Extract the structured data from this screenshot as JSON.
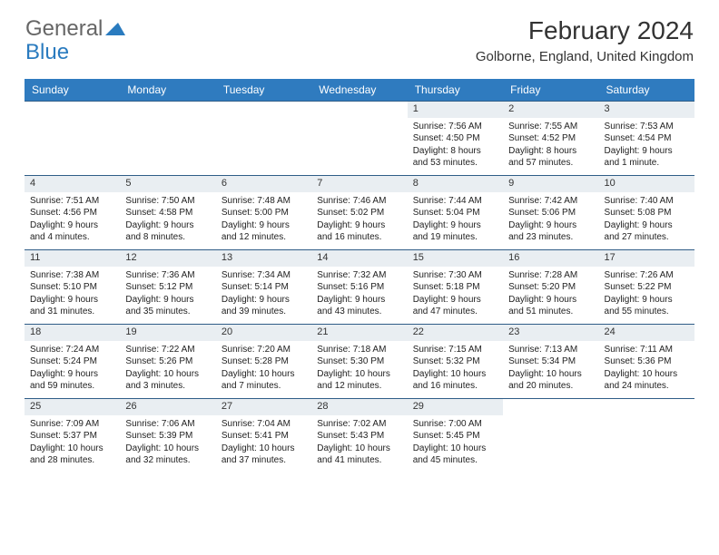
{
  "logo": {
    "text1": "General",
    "text2": "Blue"
  },
  "title": "February 2024",
  "location": "Golborne, England, United Kingdom",
  "dow": [
    "Sunday",
    "Monday",
    "Tuesday",
    "Wednesday",
    "Thursday",
    "Friday",
    "Saturday"
  ],
  "colors": {
    "header_bg": "#2f7bbf",
    "header_text": "#ffffff",
    "daynum_bg": "#e9eef2",
    "border": "#2f5d87",
    "text": "#222222",
    "logo_gray": "#666666",
    "logo_blue": "#2a7bbf"
  },
  "weeks": [
    [
      null,
      null,
      null,
      null,
      {
        "n": "1",
        "sr": "Sunrise: 7:56 AM",
        "ss": "Sunset: 4:50 PM",
        "d1": "Daylight: 8 hours",
        "d2": "and 53 minutes."
      },
      {
        "n": "2",
        "sr": "Sunrise: 7:55 AM",
        "ss": "Sunset: 4:52 PM",
        "d1": "Daylight: 8 hours",
        "d2": "and 57 minutes."
      },
      {
        "n": "3",
        "sr": "Sunrise: 7:53 AM",
        "ss": "Sunset: 4:54 PM",
        "d1": "Daylight: 9 hours",
        "d2": "and 1 minute."
      }
    ],
    [
      {
        "n": "4",
        "sr": "Sunrise: 7:51 AM",
        "ss": "Sunset: 4:56 PM",
        "d1": "Daylight: 9 hours",
        "d2": "and 4 minutes."
      },
      {
        "n": "5",
        "sr": "Sunrise: 7:50 AM",
        "ss": "Sunset: 4:58 PM",
        "d1": "Daylight: 9 hours",
        "d2": "and 8 minutes."
      },
      {
        "n": "6",
        "sr": "Sunrise: 7:48 AM",
        "ss": "Sunset: 5:00 PM",
        "d1": "Daylight: 9 hours",
        "d2": "and 12 minutes."
      },
      {
        "n": "7",
        "sr": "Sunrise: 7:46 AM",
        "ss": "Sunset: 5:02 PM",
        "d1": "Daylight: 9 hours",
        "d2": "and 16 minutes."
      },
      {
        "n": "8",
        "sr": "Sunrise: 7:44 AM",
        "ss": "Sunset: 5:04 PM",
        "d1": "Daylight: 9 hours",
        "d2": "and 19 minutes."
      },
      {
        "n": "9",
        "sr": "Sunrise: 7:42 AM",
        "ss": "Sunset: 5:06 PM",
        "d1": "Daylight: 9 hours",
        "d2": "and 23 minutes."
      },
      {
        "n": "10",
        "sr": "Sunrise: 7:40 AM",
        "ss": "Sunset: 5:08 PM",
        "d1": "Daylight: 9 hours",
        "d2": "and 27 minutes."
      }
    ],
    [
      {
        "n": "11",
        "sr": "Sunrise: 7:38 AM",
        "ss": "Sunset: 5:10 PM",
        "d1": "Daylight: 9 hours",
        "d2": "and 31 minutes."
      },
      {
        "n": "12",
        "sr": "Sunrise: 7:36 AM",
        "ss": "Sunset: 5:12 PM",
        "d1": "Daylight: 9 hours",
        "d2": "and 35 minutes."
      },
      {
        "n": "13",
        "sr": "Sunrise: 7:34 AM",
        "ss": "Sunset: 5:14 PM",
        "d1": "Daylight: 9 hours",
        "d2": "and 39 minutes."
      },
      {
        "n": "14",
        "sr": "Sunrise: 7:32 AM",
        "ss": "Sunset: 5:16 PM",
        "d1": "Daylight: 9 hours",
        "d2": "and 43 minutes."
      },
      {
        "n": "15",
        "sr": "Sunrise: 7:30 AM",
        "ss": "Sunset: 5:18 PM",
        "d1": "Daylight: 9 hours",
        "d2": "and 47 minutes."
      },
      {
        "n": "16",
        "sr": "Sunrise: 7:28 AM",
        "ss": "Sunset: 5:20 PM",
        "d1": "Daylight: 9 hours",
        "d2": "and 51 minutes."
      },
      {
        "n": "17",
        "sr": "Sunrise: 7:26 AM",
        "ss": "Sunset: 5:22 PM",
        "d1": "Daylight: 9 hours",
        "d2": "and 55 minutes."
      }
    ],
    [
      {
        "n": "18",
        "sr": "Sunrise: 7:24 AM",
        "ss": "Sunset: 5:24 PM",
        "d1": "Daylight: 9 hours",
        "d2": "and 59 minutes."
      },
      {
        "n": "19",
        "sr": "Sunrise: 7:22 AM",
        "ss": "Sunset: 5:26 PM",
        "d1": "Daylight: 10 hours",
        "d2": "and 3 minutes."
      },
      {
        "n": "20",
        "sr": "Sunrise: 7:20 AM",
        "ss": "Sunset: 5:28 PM",
        "d1": "Daylight: 10 hours",
        "d2": "and 7 minutes."
      },
      {
        "n": "21",
        "sr": "Sunrise: 7:18 AM",
        "ss": "Sunset: 5:30 PM",
        "d1": "Daylight: 10 hours",
        "d2": "and 12 minutes."
      },
      {
        "n": "22",
        "sr": "Sunrise: 7:15 AM",
        "ss": "Sunset: 5:32 PM",
        "d1": "Daylight: 10 hours",
        "d2": "and 16 minutes."
      },
      {
        "n": "23",
        "sr": "Sunrise: 7:13 AM",
        "ss": "Sunset: 5:34 PM",
        "d1": "Daylight: 10 hours",
        "d2": "and 20 minutes."
      },
      {
        "n": "24",
        "sr": "Sunrise: 7:11 AM",
        "ss": "Sunset: 5:36 PM",
        "d1": "Daylight: 10 hours",
        "d2": "and 24 minutes."
      }
    ],
    [
      {
        "n": "25",
        "sr": "Sunrise: 7:09 AM",
        "ss": "Sunset: 5:37 PM",
        "d1": "Daylight: 10 hours",
        "d2": "and 28 minutes."
      },
      {
        "n": "26",
        "sr": "Sunrise: 7:06 AM",
        "ss": "Sunset: 5:39 PM",
        "d1": "Daylight: 10 hours",
        "d2": "and 32 minutes."
      },
      {
        "n": "27",
        "sr": "Sunrise: 7:04 AM",
        "ss": "Sunset: 5:41 PM",
        "d1": "Daylight: 10 hours",
        "d2": "and 37 minutes."
      },
      {
        "n": "28",
        "sr": "Sunrise: 7:02 AM",
        "ss": "Sunset: 5:43 PM",
        "d1": "Daylight: 10 hours",
        "d2": "and 41 minutes."
      },
      {
        "n": "29",
        "sr": "Sunrise: 7:00 AM",
        "ss": "Sunset: 5:45 PM",
        "d1": "Daylight: 10 hours",
        "d2": "and 45 minutes."
      },
      null,
      null
    ]
  ]
}
